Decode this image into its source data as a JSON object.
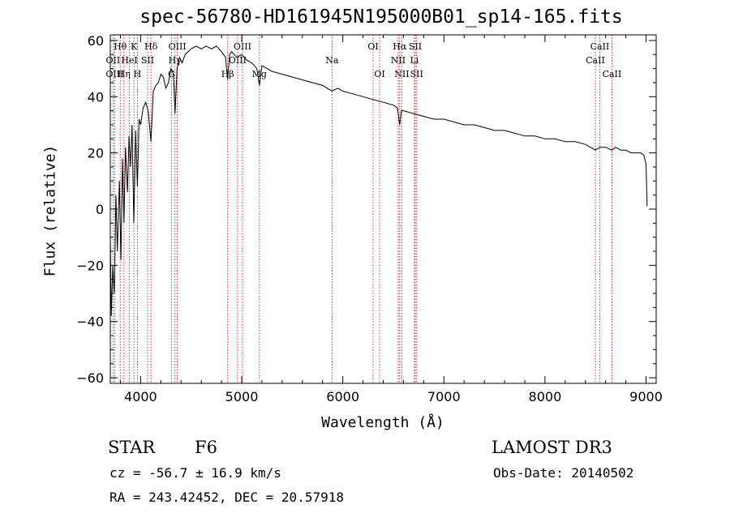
{
  "figure": {
    "title": "spec-56780-HD161945N195000B01_sp14-165.fits",
    "class_label": "STAR",
    "subclass_label": "F6",
    "survey_label": "LAMOST DR3",
    "cz_text": "cz = -56.7 ± 16.9 km/s",
    "obs_date_text": "Obs-Date: 20140502",
    "coords_text": "RA = 243.42452, DEC =  20.57918"
  },
  "chart_data": {
    "type": "line",
    "title": "spec-56780-HD161945N195000B01_sp14-165.fits",
    "xlabel": "Wavelength (Å)",
    "ylabel": "Flux (relative)",
    "xlim": [
      3700,
      9100
    ],
    "ylim": [
      -62,
      62
    ],
    "xticks": [
      4000,
      5000,
      6000,
      7000,
      8000,
      9000
    ],
    "yticks": [
      -60,
      -40,
      -20,
      0,
      20,
      40,
      60
    ],
    "series": [
      {
        "name": "flux",
        "x": [
          3700,
          3710,
          3725,
          3740,
          3755,
          3770,
          3790,
          3805,
          3820,
          3835,
          3850,
          3870,
          3885,
          3900,
          3915,
          3933,
          3950,
          3968,
          3985,
          4000,
          4025,
          4050,
          4075,
          4102,
          4125,
          4150,
          4175,
          4200,
          4225,
          4250,
          4275,
          4300,
          4325,
          4340,
          4360,
          4385,
          4410,
          4440,
          4470,
          4500,
          4550,
          4600,
          4650,
          4700,
          4750,
          4800,
          4840,
          4861,
          4880,
          4900,
          4950,
          5000,
          5050,
          5100,
          5150,
          5175,
          5200,
          5250,
          5300,
          5400,
          5500,
          5600,
          5700,
          5800,
          5893,
          5950,
          6000,
          6100,
          6200,
          6300,
          6400,
          6500,
          6540,
          6563,
          6580,
          6600,
          6700,
          6800,
          6900,
          7000,
          7100,
          7200,
          7300,
          7400,
          7500,
          7600,
          7700,
          7800,
          7900,
          8000,
          8100,
          8200,
          8300,
          8400,
          8498,
          8542,
          8600,
          8662,
          8700,
          8750,
          8800,
          8850,
          8900,
          8950,
          8980,
          9000,
          9010
        ],
        "y": [
          -10,
          -38,
          -20,
          -30,
          5,
          -15,
          10,
          -18,
          18,
          -5,
          22,
          6,
          26,
          15,
          30,
          -5,
          28,
          8,
          32,
          30,
          36,
          38,
          35,
          24,
          42,
          44,
          45,
          48,
          47,
          43,
          45,
          50,
          48,
          34,
          50,
          54,
          52,
          55,
          56,
          57,
          58,
          57,
          58,
          57,
          58,
          56,
          54,
          46,
          55,
          56,
          54,
          55,
          53,
          52,
          50,
          44,
          51,
          50,
          49,
          48,
          47,
          46,
          45,
          44,
          42,
          43,
          42,
          41,
          40,
          39,
          38,
          37,
          36,
          30,
          35,
          35,
          34,
          33,
          32,
          32,
          31,
          30,
          30,
          29,
          28,
          28,
          27,
          26,
          26,
          25,
          25,
          24,
          24,
          23,
          21,
          22,
          22,
          21,
          22,
          21,
          21,
          20,
          20,
          20,
          19,
          16,
          1
        ]
      }
    ],
    "line_markers": [
      {
        "label": "Hθ",
        "x": 3798,
        "row": 0
      },
      {
        "label": "OII",
        "x": 3727,
        "row": 1
      },
      {
        "label": "OIII",
        "x": 3743,
        "row": 2
      },
      {
        "label": "HeI",
        "x": 3889,
        "row": 1
      },
      {
        "label": "Hη",
        "x": 3835,
        "row": 2
      },
      {
        "label": "K",
        "x": 3934,
        "row": 0
      },
      {
        "label": "SII",
        "x": 4069,
        "row": 1
      },
      {
        "label": "H",
        "x": 3968,
        "row": 2
      },
      {
        "label": "Hδ",
        "x": 4102,
        "row": 0
      },
      {
        "label": "OIII",
        "x": 4363,
        "row": 0
      },
      {
        "label": "Hγ",
        "x": 4340,
        "row": 1
      },
      {
        "label": "G",
        "x": 4305,
        "row": 2
      },
      {
        "label": "OIII",
        "x": 5007,
        "row": 0
      },
      {
        "label": "OIII",
        "x": 4959,
        "row": 1
      },
      {
        "label": "Hβ",
        "x": 4861,
        "row": 2
      },
      {
        "label": "Mg",
        "x": 5175,
        "row": 2
      },
      {
        "label": "Na",
        "x": 5893,
        "row": 1
      },
      {
        "label": "OI",
        "x": 6300,
        "row": 0
      },
      {
        "label": "OI",
        "x": 6364,
        "row": 2
      },
      {
        "label": "Hα",
        "x": 6563,
        "row": 0
      },
      {
        "label": "SII",
        "x": 6717,
        "row": 0
      },
      {
        "label": "NII",
        "x": 6548,
        "row": 1
      },
      {
        "label": "Li",
        "x": 6708,
        "row": 1
      },
      {
        "label": "NII",
        "x": 6584,
        "row": 2
      },
      {
        "label": "SII",
        "x": 6731,
        "row": 2
      },
      {
        "label": "CaII",
        "x": 8542,
        "row": 0
      },
      {
        "label": "CaII",
        "x": 8498,
        "row": 1
      },
      {
        "label": "CaII",
        "x": 8662,
        "row": 2
      }
    ]
  }
}
